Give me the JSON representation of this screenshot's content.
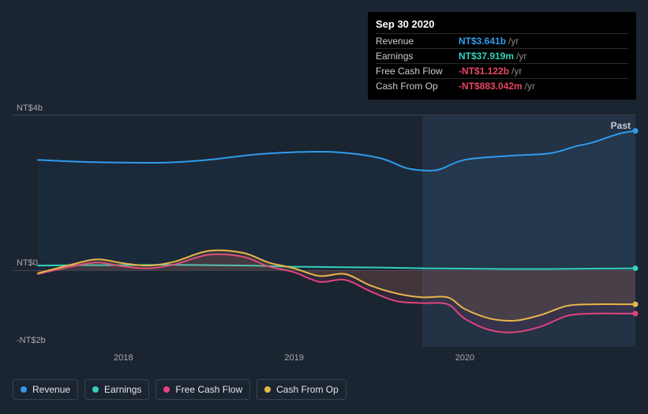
{
  "tooltip": {
    "date": "Sep 30 2020",
    "rows": [
      {
        "label": "Revenue",
        "value": "NT$3.641b",
        "color": "#2f9ceb",
        "unit": "/yr"
      },
      {
        "label": "Earnings",
        "value": "NT$37.919m",
        "color": "#35d0ba",
        "unit": "/yr"
      },
      {
        "label": "Free Cash Flow",
        "value": "-NT$1.122b",
        "color": "#e64562",
        "unit": "/yr"
      },
      {
        "label": "Cash From Op",
        "value": "-NT$883.042m",
        "color": "#e64562",
        "unit": "/yr"
      }
    ]
  },
  "chart": {
    "type": "line",
    "background": "#1b2431",
    "plot_background": "transparent",
    "grid_color": "#3a4250",
    "ylim": [
      -2,
      4
    ],
    "ytick_labels": [
      {
        "y": 4,
        "text": "NT$4b"
      },
      {
        "y": 0,
        "text": "NT$0"
      },
      {
        "y": -2,
        "text": "-NT$2b"
      }
    ],
    "x_start": 2017.5,
    "x_end": 2021.0,
    "xtick_labels": [
      {
        "x": 2018,
        "text": "2018"
      },
      {
        "x": 2019,
        "text": "2019"
      },
      {
        "x": 2020,
        "text": "2020"
      }
    ],
    "highlight_start": 2019.75,
    "highlight_end": 2021.0,
    "past_label": "Past",
    "line_width": 2,
    "series": [
      {
        "name": "Revenue",
        "color": "#2f9ceb",
        "fill": "rgba(47,156,235,0.05)",
        "fill_to_zero": true,
        "points": [
          [
            2017.5,
            2.85
          ],
          [
            2017.75,
            2.8
          ],
          [
            2018.0,
            2.78
          ],
          [
            2018.25,
            2.78
          ],
          [
            2018.5,
            2.85
          ],
          [
            2018.75,
            2.98
          ],
          [
            2019.0,
            3.05
          ],
          [
            2019.25,
            3.05
          ],
          [
            2019.5,
            2.9
          ],
          [
            2019.65,
            2.65
          ],
          [
            2019.75,
            2.58
          ],
          [
            2019.85,
            2.6
          ],
          [
            2020.0,
            2.85
          ],
          [
            2020.25,
            2.95
          ],
          [
            2020.5,
            3.02
          ],
          [
            2020.65,
            3.2
          ],
          [
            2020.75,
            3.3
          ],
          [
            2020.9,
            3.52
          ],
          [
            2021.0,
            3.6
          ]
        ]
      },
      {
        "name": "Earnings",
        "color": "#35d0ba",
        "points": [
          [
            2017.5,
            0.12
          ],
          [
            2017.75,
            0.13
          ],
          [
            2018.0,
            0.13
          ],
          [
            2018.25,
            0.14
          ],
          [
            2018.5,
            0.13
          ],
          [
            2018.75,
            0.12
          ],
          [
            2019.0,
            0.09
          ],
          [
            2019.25,
            0.08
          ],
          [
            2019.5,
            0.07
          ],
          [
            2019.75,
            0.05
          ],
          [
            2020.0,
            0.04
          ],
          [
            2020.25,
            0.03
          ],
          [
            2020.5,
            0.03
          ],
          [
            2020.75,
            0.04
          ],
          [
            2021.0,
            0.05
          ]
        ]
      },
      {
        "name": "Free Cash Flow",
        "color": "#e0447e",
        "fill": "rgba(224,68,126,0.10)",
        "fill_to_zero": true,
        "points": [
          [
            2017.5,
            -0.1
          ],
          [
            2017.7,
            0.1
          ],
          [
            2017.85,
            0.2
          ],
          [
            2018.0,
            0.1
          ],
          [
            2018.15,
            0.05
          ],
          [
            2018.3,
            0.15
          ],
          [
            2018.5,
            0.4
          ],
          [
            2018.7,
            0.35
          ],
          [
            2018.85,
            0.1
          ],
          [
            2019.0,
            -0.05
          ],
          [
            2019.15,
            -0.3
          ],
          [
            2019.3,
            -0.25
          ],
          [
            2019.45,
            -0.55
          ],
          [
            2019.6,
            -0.8
          ],
          [
            2019.75,
            -0.85
          ],
          [
            2019.9,
            -0.88
          ],
          [
            2020.0,
            -1.25
          ],
          [
            2020.15,
            -1.55
          ],
          [
            2020.3,
            -1.6
          ],
          [
            2020.45,
            -1.45
          ],
          [
            2020.6,
            -1.18
          ],
          [
            2020.75,
            -1.12
          ],
          [
            2020.9,
            -1.12
          ],
          [
            2021.0,
            -1.12
          ]
        ]
      },
      {
        "name": "Cash From Op",
        "color": "#e7b549",
        "fill": "rgba(231,181,73,0.10)",
        "fill_to_zero": true,
        "points": [
          [
            2017.5,
            -0.08
          ],
          [
            2017.7,
            0.15
          ],
          [
            2017.85,
            0.28
          ],
          [
            2018.0,
            0.18
          ],
          [
            2018.15,
            0.12
          ],
          [
            2018.3,
            0.22
          ],
          [
            2018.5,
            0.5
          ],
          [
            2018.7,
            0.45
          ],
          [
            2018.85,
            0.2
          ],
          [
            2019.0,
            0.05
          ],
          [
            2019.15,
            -0.15
          ],
          [
            2019.3,
            -0.1
          ],
          [
            2019.45,
            -0.4
          ],
          [
            2019.6,
            -0.6
          ],
          [
            2019.75,
            -0.7
          ],
          [
            2019.9,
            -0.7
          ],
          [
            2020.0,
            -1.0
          ],
          [
            2020.15,
            -1.25
          ],
          [
            2020.3,
            -1.3
          ],
          [
            2020.45,
            -1.15
          ],
          [
            2020.6,
            -0.92
          ],
          [
            2020.75,
            -0.88
          ],
          [
            2020.9,
            -0.88
          ],
          [
            2021.0,
            -0.88
          ]
        ]
      }
    ]
  },
  "legend": [
    {
      "label": "Revenue",
      "color": "#2f9ceb"
    },
    {
      "label": "Earnings",
      "color": "#35d0ba"
    },
    {
      "label": "Free Cash Flow",
      "color": "#e0447e"
    },
    {
      "label": "Cash From Op",
      "color": "#e7b549"
    }
  ]
}
